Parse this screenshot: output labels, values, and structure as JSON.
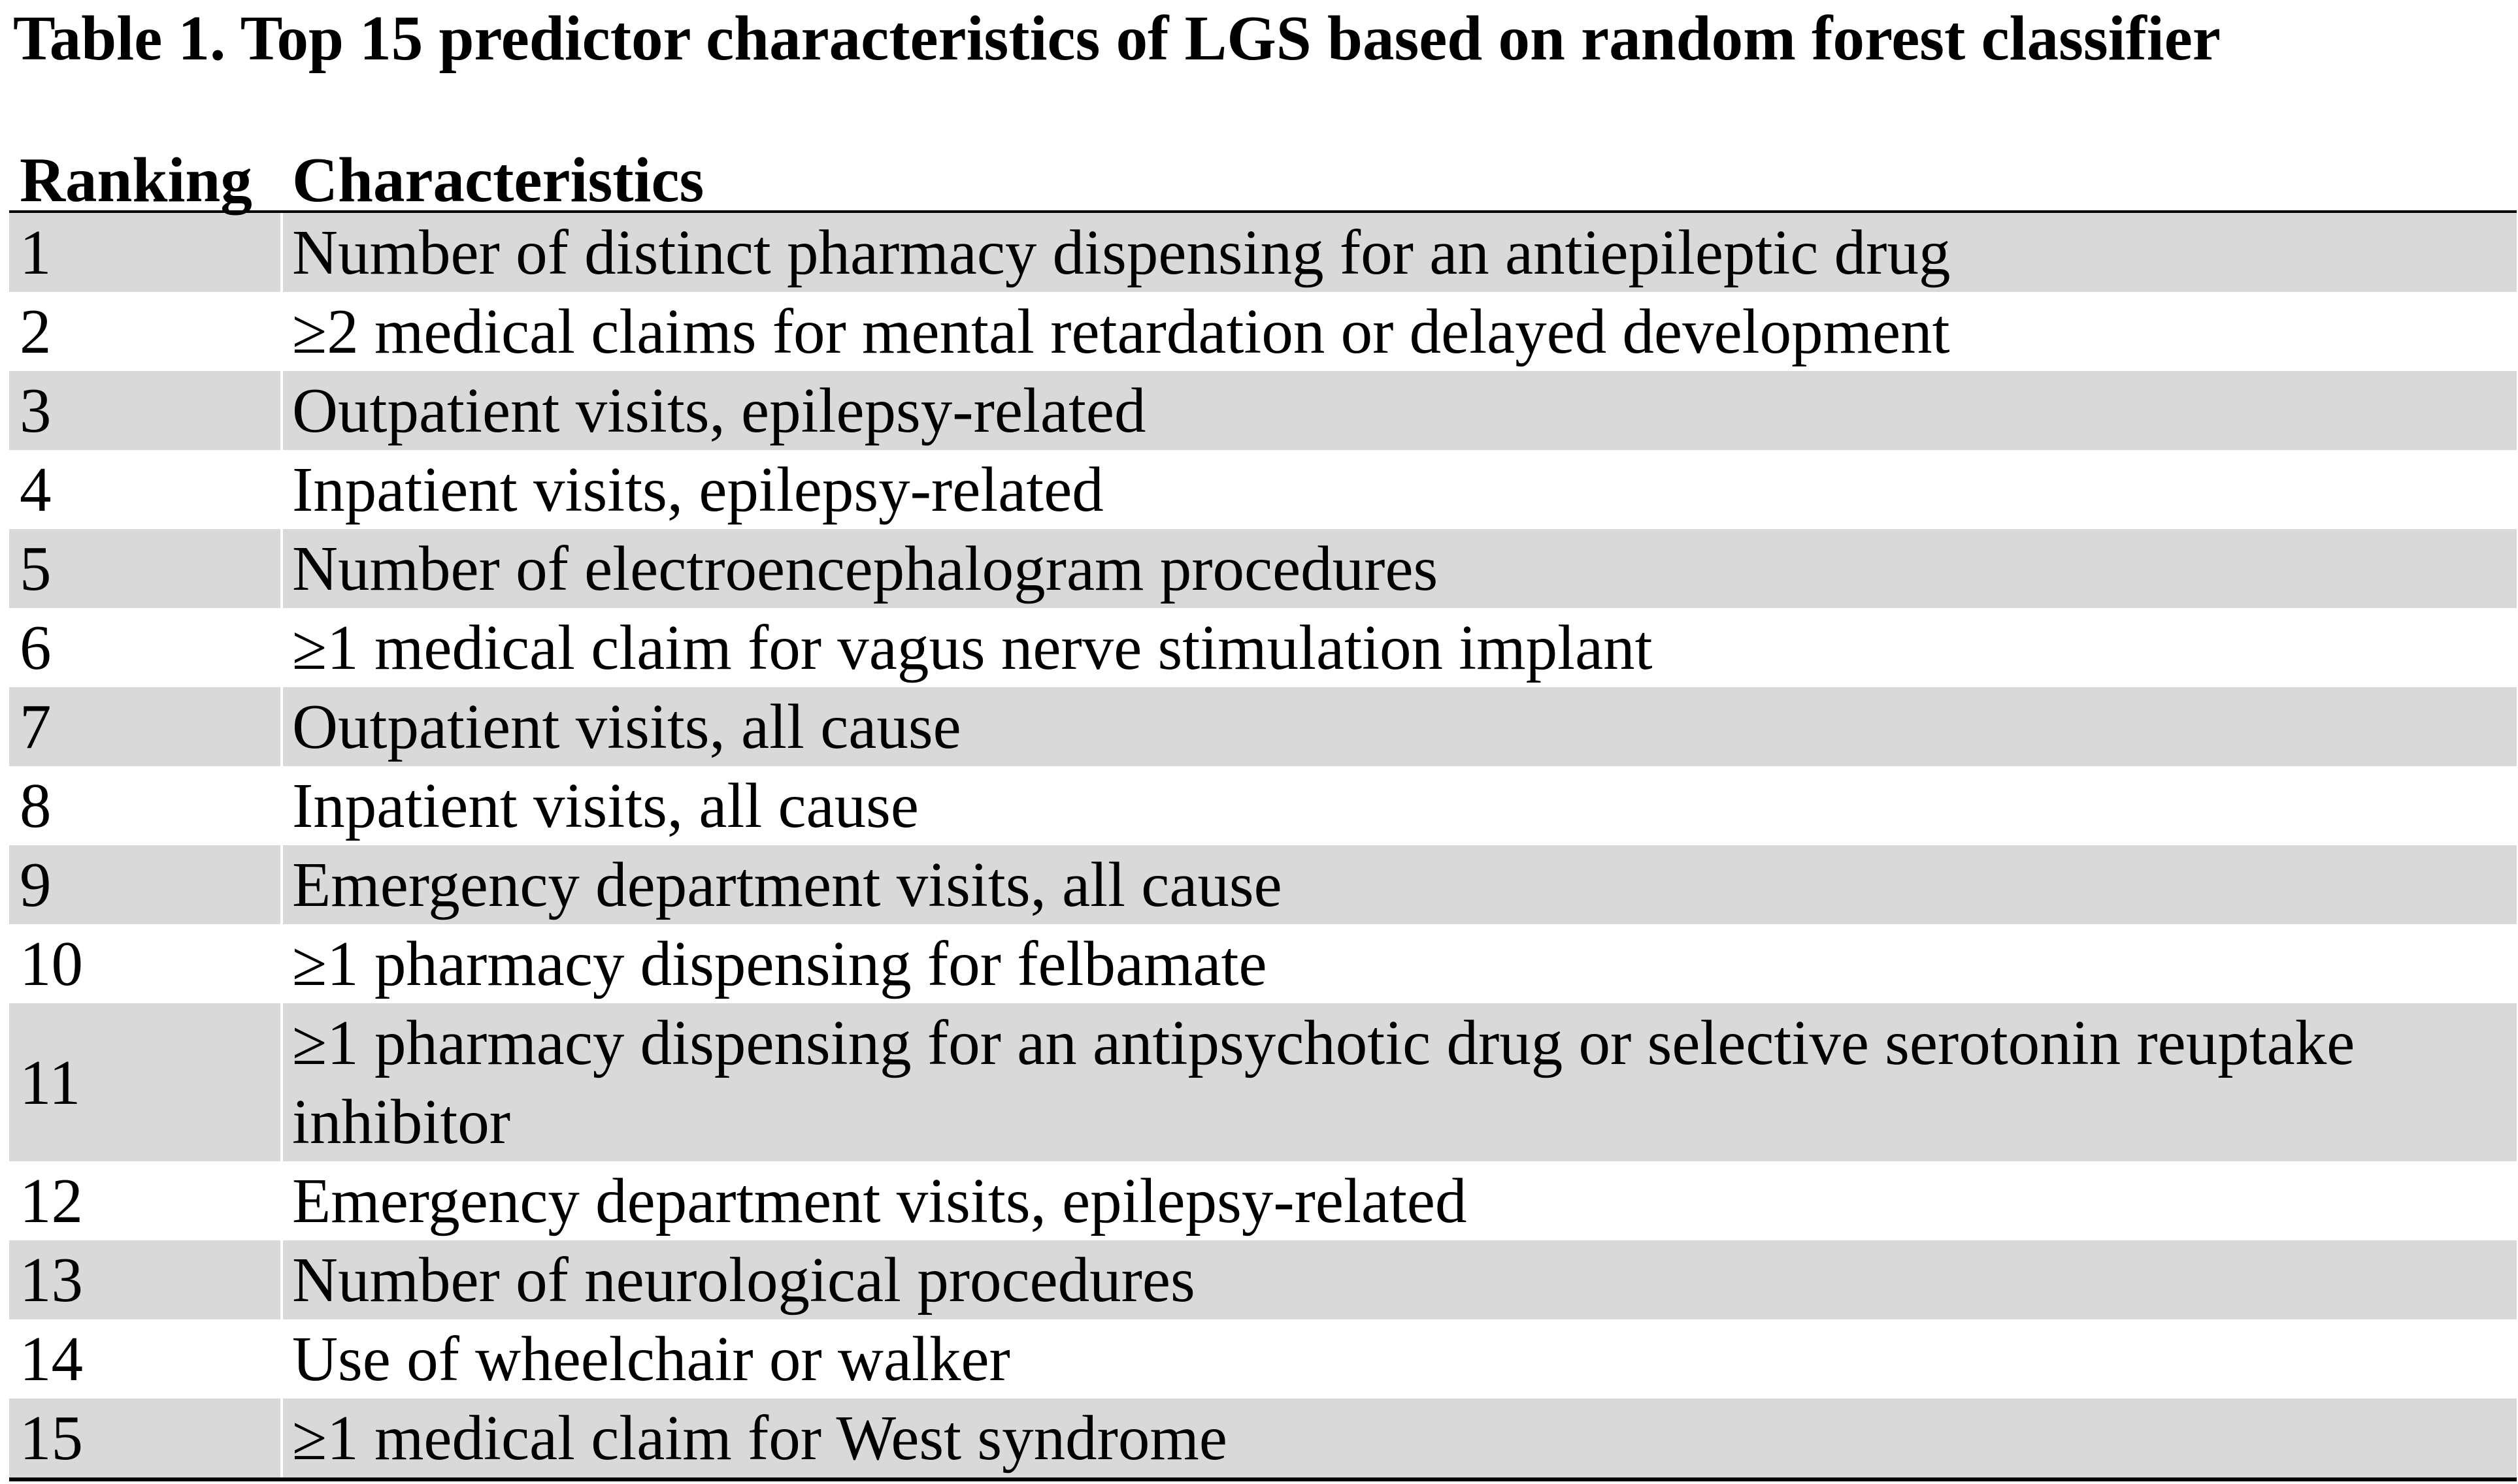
{
  "title": "Table 1. Top 15 predictor characteristics of LGS based on random forest classifier",
  "table": {
    "columns": [
      "Ranking",
      "Characteristics"
    ],
    "rows": [
      {
        "ranking": "1",
        "characteristic": "Number of distinct pharmacy dispensing for an antiepileptic drug"
      },
      {
        "ranking": "2",
        "characteristic": "≥2 medical claims for mental retardation or delayed development"
      },
      {
        "ranking": "3",
        "characteristic": "Outpatient visits, epilepsy-related"
      },
      {
        "ranking": "4",
        "characteristic": "Inpatient visits, epilepsy-related"
      },
      {
        "ranking": "5",
        "characteristic": "Number of electroencephalogram procedures"
      },
      {
        "ranking": "6",
        "characteristic": "≥1 medical claim for vagus nerve stimulation implant"
      },
      {
        "ranking": "7",
        "characteristic": "Outpatient visits, all cause"
      },
      {
        "ranking": "8",
        "characteristic": "Inpatient visits, all cause"
      },
      {
        "ranking": "9",
        "characteristic": "Emergency department visits, all cause"
      },
      {
        "ranking": "10",
        "characteristic": "≥1 pharmacy dispensing for felbamate"
      },
      {
        "ranking": "11",
        "characteristic": "≥1 pharmacy dispensing for an antipsychotic drug or selective serotonin reuptake inhibitor"
      },
      {
        "ranking": "12",
        "characteristic": "Emergency department visits, epilepsy-related"
      },
      {
        "ranking": "13",
        "characteristic": "Number of neurological procedures"
      },
      {
        "ranking": "14",
        "characteristic": "Use of wheelchair or walker"
      },
      {
        "ranking": "15",
        "characteristic": "≥1 medical claim for West syndrome"
      }
    ]
  },
  "colors": {
    "row_shading": "#d9d9d9",
    "border": "#000000",
    "background": "#ffffff"
  }
}
